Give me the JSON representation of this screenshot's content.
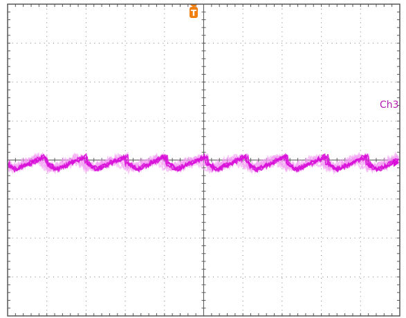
{
  "screen": {
    "channel_label": "Ch3",
    "trigger_marker": "T",
    "colors": {
      "background": "#ffffff",
      "frame": "#555555",
      "grid": "#7a7a7a",
      "channel3": "#d80fd8",
      "channel3_light": "#f29af2",
      "trigger": "#f07f10"
    },
    "grid": {
      "divisions_x": 10,
      "divisions_y": 8,
      "minor_ticks_per_division": 5
    }
  }
}
